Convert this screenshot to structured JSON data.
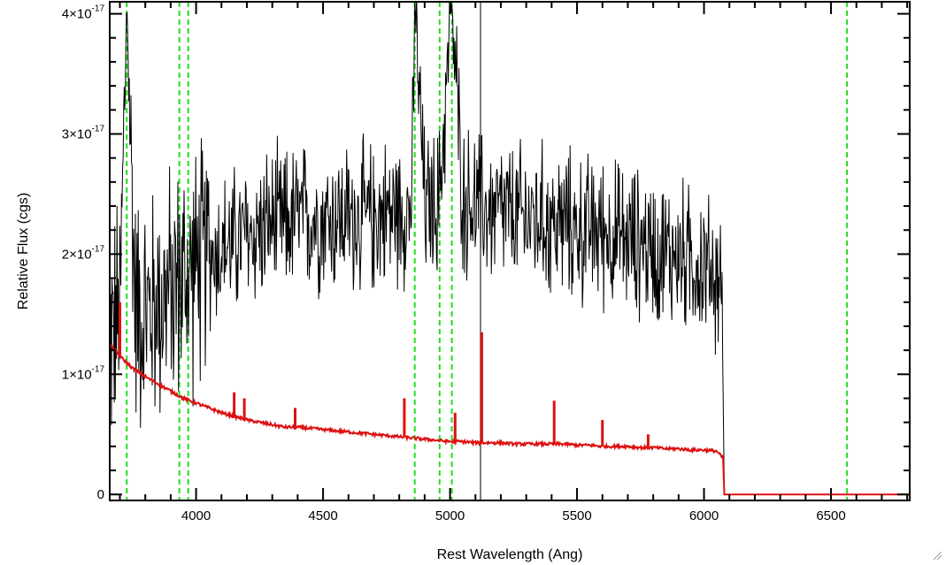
{
  "chart_data": {
    "type": "line",
    "title": "",
    "xlabel": "Rest Wavelength (Ang)",
    "ylabel": "Relative Flux (cgs)",
    "xlim": [
      3660,
      6810
    ],
    "ylim": [
      -0.05,
      4.1
    ],
    "y_exponent_label": "-17",
    "grid": false,
    "x_ticks": [
      {
        "value": 4000,
        "label": "4000"
      },
      {
        "value": 4500,
        "label": "4500"
      },
      {
        "value": 5000,
        "label": "5000"
      },
      {
        "value": 5500,
        "label": "5500"
      },
      {
        "value": 6000,
        "label": "6000"
      },
      {
        "value": 6500,
        "label": "6500"
      }
    ],
    "y_ticks": [
      {
        "value": 0,
        "mantissa": "0"
      },
      {
        "value": 1,
        "mantissa": "1×10"
      },
      {
        "value": 2,
        "mantissa": "2×10"
      },
      {
        "value": 3,
        "mantissa": "3×10"
      },
      {
        "value": 4,
        "mantissa": "4×10"
      }
    ],
    "vertical_lines": {
      "color": "#22dd22",
      "x": [
        3727,
        3934,
        3969,
        4861,
        4959,
        5007,
        6563
      ]
    },
    "series": [
      {
        "color": "#000000",
        "x": [
          3660,
          3700,
          3727,
          3760,
          3800,
          3850,
          3900,
          3950,
          4000,
          4050,
          4100,
          4150,
          4200,
          4250,
          4300,
          4350,
          4400,
          4450,
          4500,
          4550,
          4600,
          4650,
          4700,
          4750,
          4800,
          4850,
          4861,
          4900,
          4950,
          4959,
          5007,
          5050,
          5100,
          5120,
          5150,
          5200,
          5250,
          5300,
          5350,
          5400,
          5450,
          5500,
          5550,
          5600,
          5650,
          5700,
          5750,
          5800,
          5850,
          5900,
          5950,
          6000,
          6050,
          6075,
          6080
        ],
        "y": [
          1.3,
          1.5,
          4.1,
          1.6,
          1.5,
          1.6,
          1.7,
          1.8,
          1.9,
          2.0,
          2.05,
          2.1,
          2.15,
          2.2,
          2.25,
          2.25,
          2.3,
          2.3,
          2.3,
          2.3,
          2.3,
          2.3,
          2.3,
          2.35,
          2.35,
          2.4,
          4.1,
          2.4,
          2.4,
          2.5,
          4.1,
          2.45,
          2.4,
          2.4,
          2.35,
          2.35,
          2.3,
          2.3,
          2.3,
          2.25,
          2.25,
          2.2,
          2.2,
          2.2,
          2.15,
          2.1,
          2.1,
          2.05,
          2.0,
          2.0,
          1.95,
          1.9,
          1.8,
          1.7,
          0.0
        ]
      },
      {
        "color": "#dd1111",
        "x": [
          3660,
          3700,
          3750,
          3800,
          3850,
          3900,
          3950,
          4000,
          4050,
          4100,
          4150,
          4200,
          4250,
          4300,
          4350,
          4400,
          4450,
          4500,
          4550,
          4600,
          4650,
          4700,
          4750,
          4800,
          4850,
          4900,
          4950,
          5000,
          5050,
          5100,
          5150,
          5200,
          5250,
          5300,
          5350,
          5400,
          5450,
          5500,
          5550,
          5600,
          5650,
          5700,
          5750,
          5800,
          5850,
          5900,
          5950,
          6000,
          6050,
          6075,
          6080,
          6810
        ],
        "y": [
          1.25,
          1.15,
          1.05,
          0.98,
          0.92,
          0.86,
          0.8,
          0.76,
          0.72,
          0.68,
          0.65,
          0.62,
          0.6,
          0.58,
          0.56,
          0.56,
          0.55,
          0.54,
          0.53,
          0.52,
          0.51,
          0.5,
          0.49,
          0.48,
          0.47,
          0.46,
          0.45,
          0.44,
          0.44,
          0.43,
          0.43,
          0.43,
          0.42,
          0.42,
          0.42,
          0.42,
          0.42,
          0.41,
          0.41,
          0.4,
          0.4,
          0.4,
          0.39,
          0.39,
          0.38,
          0.38,
          0.37,
          0.37,
          0.36,
          0.3,
          0.0,
          0.0
        ],
        "peaks": [
          {
            "x": 3700,
            "y": 1.6
          },
          {
            "x": 4150,
            "y": 0.85
          },
          {
            "x": 4190,
            "y": 0.8
          },
          {
            "x": 4390,
            "y": 0.72
          },
          {
            "x": 4820,
            "y": 0.8
          },
          {
            "x": 5020,
            "y": 0.68
          },
          {
            "x": 5125,
            "y": 1.35
          },
          {
            "x": 5410,
            "y": 0.78
          },
          {
            "x": 5600,
            "y": 0.62
          },
          {
            "x": 5780,
            "y": 0.5
          }
        ]
      }
    ]
  }
}
